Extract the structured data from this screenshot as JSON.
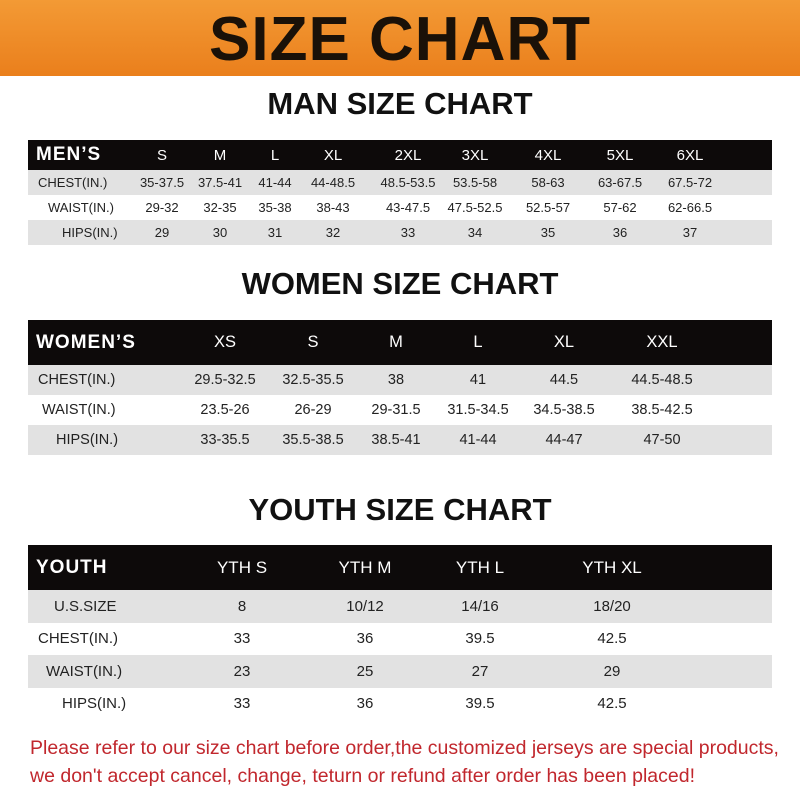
{
  "banner_title": "SIZE CHART",
  "colors": {
    "banner": "#ee8a28",
    "header_row": "#0d0a0a",
    "stripe": "#e2e2e2",
    "note": "#c1272d"
  },
  "men": {
    "title": "MAN SIZE CHART",
    "header": "MEN’S",
    "sizes": [
      "S",
      "M",
      "L",
      "XL",
      "2XL",
      "3XL",
      "4XL",
      "5XL",
      "6XL"
    ],
    "rows": [
      {
        "label": "CHEST(IN.)",
        "values": [
          "35-37.5",
          "37.5-41",
          "41-44",
          "44-48.5",
          "48.5-53.5",
          "53.5-58",
          "58-63",
          "63-67.5",
          "67.5-72"
        ]
      },
      {
        "label": "WAIST(IN.)",
        "values": [
          "29-32",
          "32-35",
          "35-38",
          "38-43",
          "43-47.5",
          "47.5-52.5",
          "52.5-57",
          "57-62",
          "62-66.5"
        ]
      },
      {
        "label": "HIPS(IN.)",
        "values": [
          "29",
          "30",
          "31",
          "32",
          "33",
          "34",
          "35",
          "36",
          "37"
        ]
      }
    ]
  },
  "women": {
    "title": "WOMEN SIZE CHART",
    "header": "WOMEN’S",
    "sizes": [
      "XS",
      "S",
      "M",
      "L",
      "XL",
      "XXL"
    ],
    "rows": [
      {
        "label": "CHEST(IN.)",
        "values": [
          "29.5-32.5",
          "32.5-35.5",
          "38",
          "41",
          "44.5",
          "44.5-48.5"
        ]
      },
      {
        "label": "WAIST(IN.)",
        "values": [
          "23.5-26",
          "26-29",
          "29-31.5",
          "31.5-34.5",
          "34.5-38.5",
          "38.5-42.5"
        ]
      },
      {
        "label": "HIPS(IN.)",
        "values": [
          "33-35.5",
          "35.5-38.5",
          "38.5-41",
          "41-44",
          "44-47",
          "47-50"
        ]
      }
    ]
  },
  "youth": {
    "title": "YOUTH SIZE CHART",
    "header": "YOUTH",
    "sizes": [
      "YTH S",
      "YTH M",
      "YTH L",
      "YTH XL"
    ],
    "rows": [
      {
        "label": "U.S.SIZE",
        "values": [
          "8",
          "10/12",
          "14/16",
          "18/20"
        ]
      },
      {
        "label": "CHEST(IN.)",
        "values": [
          "33",
          "36",
          "39.5",
          "42.5"
        ]
      },
      {
        "label": "WAIST(IN.)",
        "values": [
          "23",
          "25",
          "27",
          "29"
        ]
      },
      {
        "label": "HIPS(IN.)",
        "values": [
          "33",
          "36",
          "39.5",
          "42.5"
        ]
      }
    ]
  },
  "note": {
    "line1": "Please refer to our size chart before order,the customized jerseys are special products,",
    "line2": "we don't accept cancel, change, teturn or refund after order has been placed!"
  }
}
